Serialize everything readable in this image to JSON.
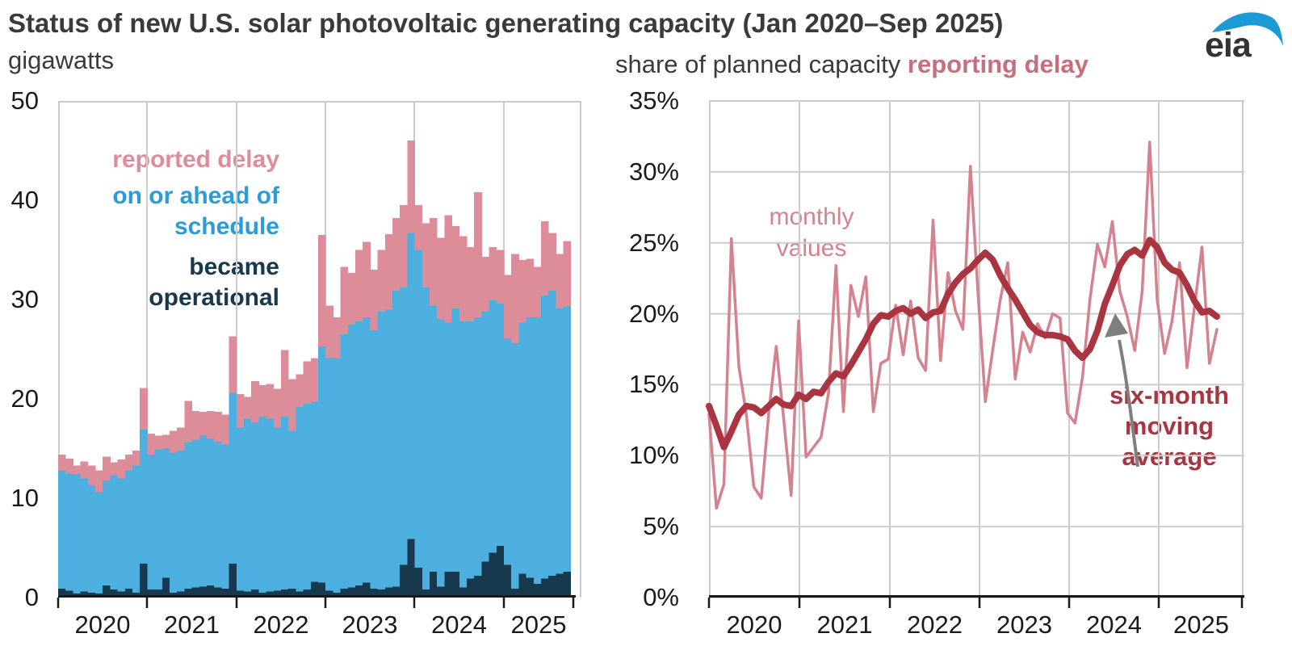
{
  "header": {
    "title": "Status of new U.S. solar photovoltaic generating capacity (Jan 2020–Sep 2025)",
    "left_unit": "gigawatts",
    "right_subtitle_plain": "share of planned capacity ",
    "right_subtitle_accent": "reporting delay",
    "logo_text": "eia"
  },
  "left_chart": {
    "legend_delay": "reported delay",
    "legend_ahead_line1": "on or ahead of",
    "legend_ahead_line2": "schedule",
    "legend_operational_line1": "became",
    "legend_operational_line2": "operational"
  },
  "right_chart": {
    "annotation_monthly_line1": "monthly",
    "annotation_monthly_line2": "values",
    "annotation_avg_line1": "six-month",
    "annotation_avg_line2": "moving",
    "annotation_avg_line3": "average"
  },
  "colors": {
    "title_gray": "#3a3a3a",
    "axis_text": "#1a1a1a",
    "grid": "#cccccc",
    "axis_line": "#1a1a1a",
    "bar_operational": "#17384d",
    "bar_ahead": "#4dafe0",
    "bar_delay": "#dd8c99",
    "legend_ahead_text": "#2b9cd8",
    "monthly_line": "#d5828e",
    "avg_line": "#a93541",
    "subtitle_accent": "#c76f7e",
    "arrow_gray": "#7f7f7f",
    "logo_blue": "#1c9ad6",
    "logo_text": "#333333"
  },
  "chart_data": [
    {
      "type": "bar",
      "stacked": true,
      "title": "Status of new U.S. solar photovoltaic generating capacity",
      "ylabel": "gigawatts",
      "ylim": [
        0,
        50
      ],
      "grid": "vertical-years-only",
      "y_tick_labels": [
        "0",
        "10",
        "20",
        "30",
        "40",
        "50"
      ],
      "x_tick_labels": [
        "2020",
        "2021",
        "2022",
        "2023",
        "2024",
        "2025"
      ],
      "x_range_months": "Jan 2020 - Sep 2025",
      "series": [
        {
          "name": "became operational",
          "color": "#17384d",
          "values": [
            0.9,
            0.7,
            0.4,
            0.6,
            0.5,
            0.4,
            1.2,
            0.8,
            0.6,
            0.9,
            0.5,
            3.4,
            0.8,
            0.8,
            2.0,
            0.5,
            0.6,
            0.9,
            1.0,
            1.1,
            1.2,
            1.0,
            0.9,
            3.4,
            0.7,
            0.6,
            0.8,
            0.5,
            0.6,
            0.7,
            0.8,
            0.9,
            0.6,
            0.8,
            1.6,
            1.5,
            0.7,
            0.5,
            0.9,
            1.0,
            1.2,
            1.5,
            0.9,
            0.8,
            1.0,
            1.1,
            3.3,
            5.9,
            3.0,
            0.8,
            2.6,
            1.1,
            2.6,
            2.6,
            1.0,
            1.9,
            2.2,
            3.6,
            4.5,
            5.2,
            3.3,
            0.9,
            2.4,
            2.0,
            1.4,
            1.9,
            2.2,
            2.4,
            2.6
          ]
        },
        {
          "name": "on or ahead of schedule",
          "color": "#4dafe0",
          "values": [
            11.9,
            11.8,
            12.0,
            11.4,
            10.8,
            10.2,
            10.6,
            11.5,
            11.4,
            11.9,
            12.8,
            13.5,
            13.6,
            14.1,
            13.0,
            14.1,
            14.2,
            14.7,
            14.9,
            15.2,
            14.8,
            14.7,
            14.5,
            17.2,
            16.4,
            17.4,
            16.8,
            17.7,
            17.4,
            16.4,
            17.4,
            15.9,
            18.6,
            18.7,
            18.1,
            23.8,
            23.4,
            23.6,
            25.6,
            26.5,
            26.6,
            26.7,
            26.0,
            28.0,
            28.0,
            29.8,
            27.9,
            30.8,
            32.0,
            30.4,
            26.8,
            26.9,
            25.1,
            26.5,
            26.8,
            25.9,
            26.0,
            25.2,
            25.4,
            24.4,
            22.8,
            24.7,
            25.3,
            26.2,
            26.8,
            28.5,
            28.7,
            26.7,
            26.7
          ]
        },
        {
          "name": "reported delay",
          "color": "#dd8c99",
          "values": [
            1.6,
            1.5,
            0.9,
            1.7,
            2.0,
            2.2,
            2.4,
            1.3,
            1.9,
            1.6,
            1.5,
            4.2,
            2.1,
            1.4,
            1.4,
            2.2,
            2.3,
            4.2,
            2.9,
            2.4,
            2.8,
            3.0,
            3.0,
            5.7,
            3.4,
            2.2,
            4.2,
            3.2,
            3.5,
            3.9,
            6.7,
            5.2,
            3.3,
            4.3,
            4.4,
            11.2,
            5.3,
            4.1,
            6.8,
            5.2,
            7.2,
            7.6,
            6.1,
            6.2,
            7.6,
            7.3,
            8.3,
            9.3,
            4.5,
            6.5,
            8.8,
            8.2,
            10.8,
            8.3,
            8.6,
            7.5,
            12.6,
            5.5,
            5.4,
            5.4,
            6.4,
            9.0,
            6.3,
            5.9,
            5.1,
            7.5,
            5.8,
            5.5,
            6.6
          ]
        }
      ]
    },
    {
      "type": "line",
      "title": "share of planned capacity reporting delay",
      "ylim": [
        0,
        35
      ],
      "grid": "full",
      "y_tick_labels": [
        "0%",
        "5%",
        "10%",
        "15%",
        "20%",
        "25%",
        "30%",
        "35%"
      ],
      "x_tick_labels": [
        "2020",
        "2021",
        "2022",
        "2023",
        "2024",
        "2025"
      ],
      "x_range_months": "Jan 2020 - Sep 2025",
      "series": [
        {
          "name": "monthly values",
          "color": "#d5828e",
          "stroke_width": 3.5,
          "values": [
            12.9,
            6.3,
            8.0,
            25.3,
            16.3,
            12.9,
            7.8,
            7.0,
            13.0,
            17.7,
            12.6,
            7.2,
            19.5,
            9.9,
            10.6,
            11.3,
            14.4,
            23.4,
            13.1,
            22.0,
            19.8,
            22.6,
            13.1,
            16.5,
            16.8,
            20.6,
            17.1,
            20.9,
            16.9,
            16.0,
            26.6,
            16.7,
            22.9,
            20.2,
            18.9,
            30.4,
            21.6,
            13.8,
            17.5,
            21.0,
            23.6,
            15.4,
            18.7,
            17.3,
            19.3,
            18.3,
            20.0,
            19.7,
            13.0,
            12.3,
            15.5,
            21.0,
            24.9,
            23.3,
            26.5,
            21.6,
            19.8,
            17.4,
            21.6,
            32.1,
            21.0,
            17.2,
            19.5,
            23.6,
            16.2,
            20.5,
            24.7,
            16.5,
            18.9
          ]
        },
        {
          "name": "six-month moving average",
          "color": "#a93541",
          "stroke_width": 8,
          "values": [
            13.5,
            12.1,
            10.6,
            11.7,
            12.9,
            13.5,
            13.4,
            13.0,
            13.5,
            14.0,
            13.6,
            13.5,
            14.3,
            14.0,
            14.5,
            14.4,
            15.2,
            15.8,
            15.6,
            16.4,
            17.3,
            18.2,
            19.3,
            19.9,
            19.8,
            20.2,
            20.4,
            20.0,
            20.3,
            19.7,
            20.1,
            20.2,
            21.4,
            22.2,
            22.8,
            23.2,
            23.8,
            24.3,
            23.8,
            22.7,
            21.8,
            21.0,
            20.1,
            19.2,
            18.7,
            18.5,
            18.5,
            18.4,
            18.2,
            17.4,
            16.9,
            17.5,
            18.8,
            20.7,
            22.0,
            23.4,
            24.2,
            24.5,
            24.1,
            25.2,
            24.7,
            23.6,
            23.1,
            22.9,
            22.0,
            20.9,
            20.1,
            20.2,
            19.8
          ]
        }
      ]
    }
  ]
}
